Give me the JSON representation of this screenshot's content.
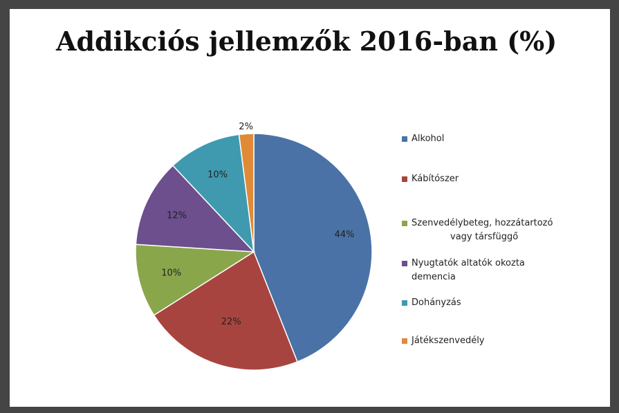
{
  "title": "Addikciós jellemzők 2016-ban (%)",
  "chart_data": {
    "type": "pie",
    "title": "Addikciós jellemzők 2016-ban (%)",
    "slices": [
      {
        "name": "Alkohol",
        "value": 44,
        "label": "44%",
        "color": "#4a72a6"
      },
      {
        "name": "Kábítószer",
        "value": 22,
        "label": "22%",
        "color": "#a8443f"
      },
      {
        "name": "Szenvedélybeteg, hozzátartozó vagy társfüggő",
        "value": 10,
        "label": "10%",
        "color": "#8aa64b"
      },
      {
        "name": "Nyugtatók altatók okozta demencia",
        "value": 12,
        "label": "12%",
        "color": "#6c4f8c"
      },
      {
        "name": "Dohányzás",
        "value": 10,
        "label": "10%",
        "color": "#3f9aaf"
      },
      {
        "name": "Játékszenvedély",
        "value": 2,
        "label": "2%",
        "color": "#e08a37"
      }
    ],
    "legend_position": "right",
    "legend": [
      {
        "line1": "Alkohol",
        "line2": ""
      },
      {
        "line1": "Kábítószer",
        "line2": ""
      },
      {
        "line1": "Szenvedélybeteg, hozzátartozó",
        "line2": "vagy társfüggő"
      },
      {
        "line1": "Nyugtatók altatók okozta",
        "line2": "demencia"
      },
      {
        "line1": "Dohányzás",
        "line2": ""
      },
      {
        "line1": "Játékszenvedély",
        "line2": ""
      }
    ]
  }
}
